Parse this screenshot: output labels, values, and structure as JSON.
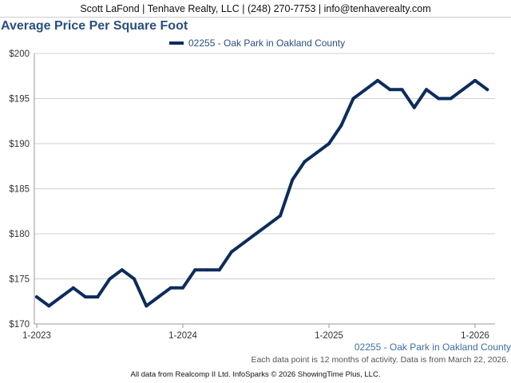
{
  "header": {
    "contact": "Scott LaFond | Tenhave Realty, LLC | (248) 270-7753 | info@tenhaverealty.com"
  },
  "chart_data": {
    "type": "line",
    "title": "Average Price Per Square Foot",
    "xlabel": "",
    "ylabel": "",
    "y_tick_labels": [
      "$170",
      "$175",
      "$180",
      "$185",
      "$190",
      "$195",
      "$200"
    ],
    "y_ticks": [
      170,
      175,
      180,
      185,
      190,
      195,
      200
    ],
    "ylim": [
      170,
      200
    ],
    "x_tick_labels": [
      "1-2023",
      "1-2024",
      "1-2025",
      "1-2026"
    ],
    "x": [
      "2023-01",
      "2023-02",
      "2023-03",
      "2023-04",
      "2023-05",
      "2023-06",
      "2023-07",
      "2023-08",
      "2023-09",
      "2023-10",
      "2023-11",
      "2023-12",
      "2024-01",
      "2024-02",
      "2024-03",
      "2024-04",
      "2024-05",
      "2024-06",
      "2024-07",
      "2024-08",
      "2024-09",
      "2024-10",
      "2024-11",
      "2024-12",
      "2025-01",
      "2025-02",
      "2025-03",
      "2025-04",
      "2025-05",
      "2025-06",
      "2025-07",
      "2025-08",
      "2025-09",
      "2025-10",
      "2025-11",
      "2025-12",
      "2026-01",
      "2026-02"
    ],
    "series": [
      {
        "name": "02255 - Oak Park in Oakland County",
        "color": "#0c2c5c",
        "values": [
          173,
          172,
          173,
          174,
          173,
          173,
          175,
          176,
          175,
          172,
          173,
          174,
          174,
          176,
          176,
          176,
          178,
          179,
          180,
          181,
          182,
          186,
          188,
          189,
          190,
          192,
          195,
          196,
          197,
          196,
          196,
          194,
          196,
          195,
          195,
          196,
          197,
          196
        ]
      }
    ],
    "grid": true,
    "legend": "top-center"
  },
  "footer": {
    "series_label": "02255 - Oak Park in Oakland County",
    "note": "Each data point is 12 months of activity. Data is from March 22, 2026.",
    "copyright": "All data from Realcomp II Ltd. InfoSparks © 2026 ShowingTime Plus, LLC."
  }
}
